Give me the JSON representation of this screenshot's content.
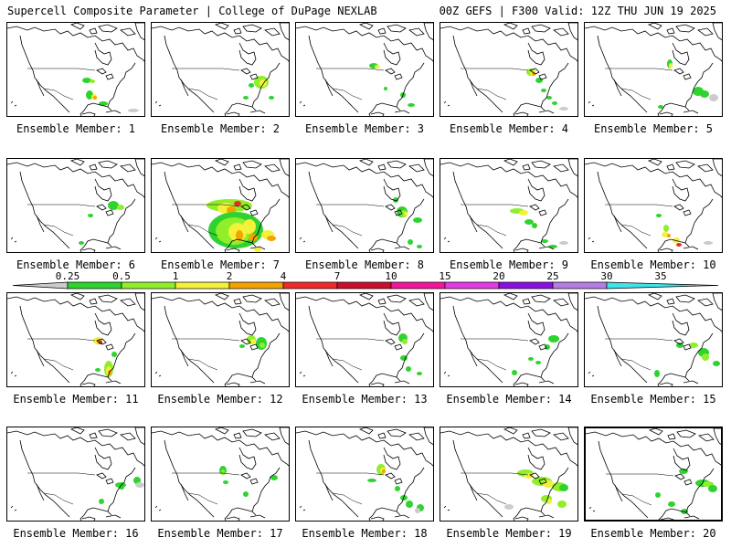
{
  "header": {
    "title": "Supercell Composite Parameter | College of DuPage NEXLAB",
    "valid": "00Z GEFS | F300 Valid: 12Z THU JUN 19 2025"
  },
  "colorbar": {
    "ticks": [
      {
        "value": "0.25",
        "color": "#cccccc"
      },
      {
        "value": "0.5",
        "color": "#2fd32f"
      },
      {
        "value": "1",
        "color": "#90ee2a"
      },
      {
        "value": "2",
        "color": "#f4f13b"
      },
      {
        "value": "4",
        "color": "#f4a300"
      },
      {
        "value": "7",
        "color": "#ee2b2b"
      },
      {
        "value": "10",
        "color": "#c8102e"
      },
      {
        "value": "15",
        "color": "#f2169a"
      },
      {
        "value": "20",
        "color": "#e23ce5"
      },
      {
        "value": "25",
        "color": "#8a10e0"
      },
      {
        "value": "30",
        "color": "#b57ce2"
      },
      {
        "value": "35",
        "color": "#3fe3e8"
      }
    ]
  },
  "members": [
    {
      "label": "Ensemble Member: 1"
    },
    {
      "label": "Ensemble Member: 2"
    },
    {
      "label": "Ensemble Member: 3"
    },
    {
      "label": "Ensemble Member: 4"
    },
    {
      "label": "Ensemble Member: 5"
    },
    {
      "label": "Ensemble Member: 6"
    },
    {
      "label": "Ensemble Member: 7"
    },
    {
      "label": "Ensemble Member: 8"
    },
    {
      "label": "Ensemble Member: 9"
    },
    {
      "label": "Ensemble Member: 10"
    },
    {
      "label": "Ensemble Member: 11"
    },
    {
      "label": "Ensemble Member: 12"
    },
    {
      "label": "Ensemble Member: 13"
    },
    {
      "label": "Ensemble Member: 14"
    },
    {
      "label": "Ensemble Member: 15"
    },
    {
      "label": "Ensemble Member: 16"
    },
    {
      "label": "Ensemble Member: 17"
    },
    {
      "label": "Ensemble Member: 18"
    },
    {
      "label": "Ensemble Member: 19"
    },
    {
      "label": "Ensemble Member: 20"
    }
  ]
}
